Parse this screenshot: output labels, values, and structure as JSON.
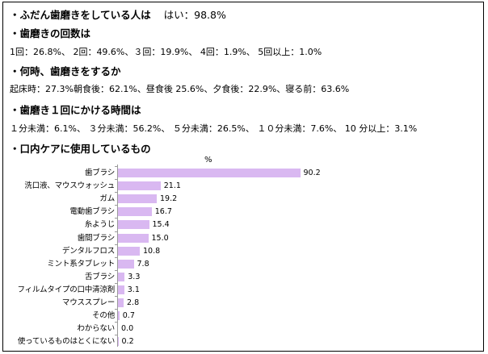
{
  "sections": [
    {
      "heading": "・ふだん歯磨きをしている人は",
      "answer": "はい：98.8%"
    },
    {
      "heading": "・歯磨きの回数は",
      "detail": "1回：26.8%、 2回：49.6%、３回：19.9%、 4回：1.9%、 5回以上：1.0%"
    },
    {
      "heading": "・何時、歯磨きをするか",
      "detail": "起床時：27.3%朝食後：62.1%、昼食後 25.6%、夕食後：22.9%、寝る前：63.6%"
    },
    {
      "heading": "・歯磨き１回にかける時間は",
      "detail": "１分未満：6.1%、 ３分未満：56.2%、 ５分未満：26.5%、 １０分未満：7.6%、 10 分以上：3.1%"
    },
    {
      "heading": "・口内ケアに使用しているもの"
    }
  ],
  "chart_data": {
    "type": "bar",
    "orientation": "horizontal",
    "unit_label": "%",
    "categories": [
      "歯ブラシ",
      "洗口液、マウスウォッシュ",
      "ガム",
      "電動歯ブラシ",
      "糸ようじ",
      "歯間ブラシ",
      "デンタルフロス",
      "ミント系タブレット",
      "舌ブラシ",
      "フィルムタイプの口中清涼剤",
      "マウススプレー",
      "その他",
      "わからない",
      "使っているものはとくにない"
    ],
    "values": [
      90.2,
      21.1,
      19.2,
      16.7,
      15.4,
      15.0,
      10.8,
      7.8,
      3.3,
      3.1,
      2.8,
      0.7,
      0.0,
      0.2
    ],
    "value_labels": [
      "90.2",
      "21.1",
      "19.2",
      "16.7",
      "15.4",
      "15.0",
      "10.8",
      "7.8",
      "3.3",
      "3.1",
      "2.8",
      "0.7",
      "0.0",
      "0.2"
    ],
    "xlim": [
      0,
      100
    ],
    "bar_color": "#d9b8f1"
  }
}
